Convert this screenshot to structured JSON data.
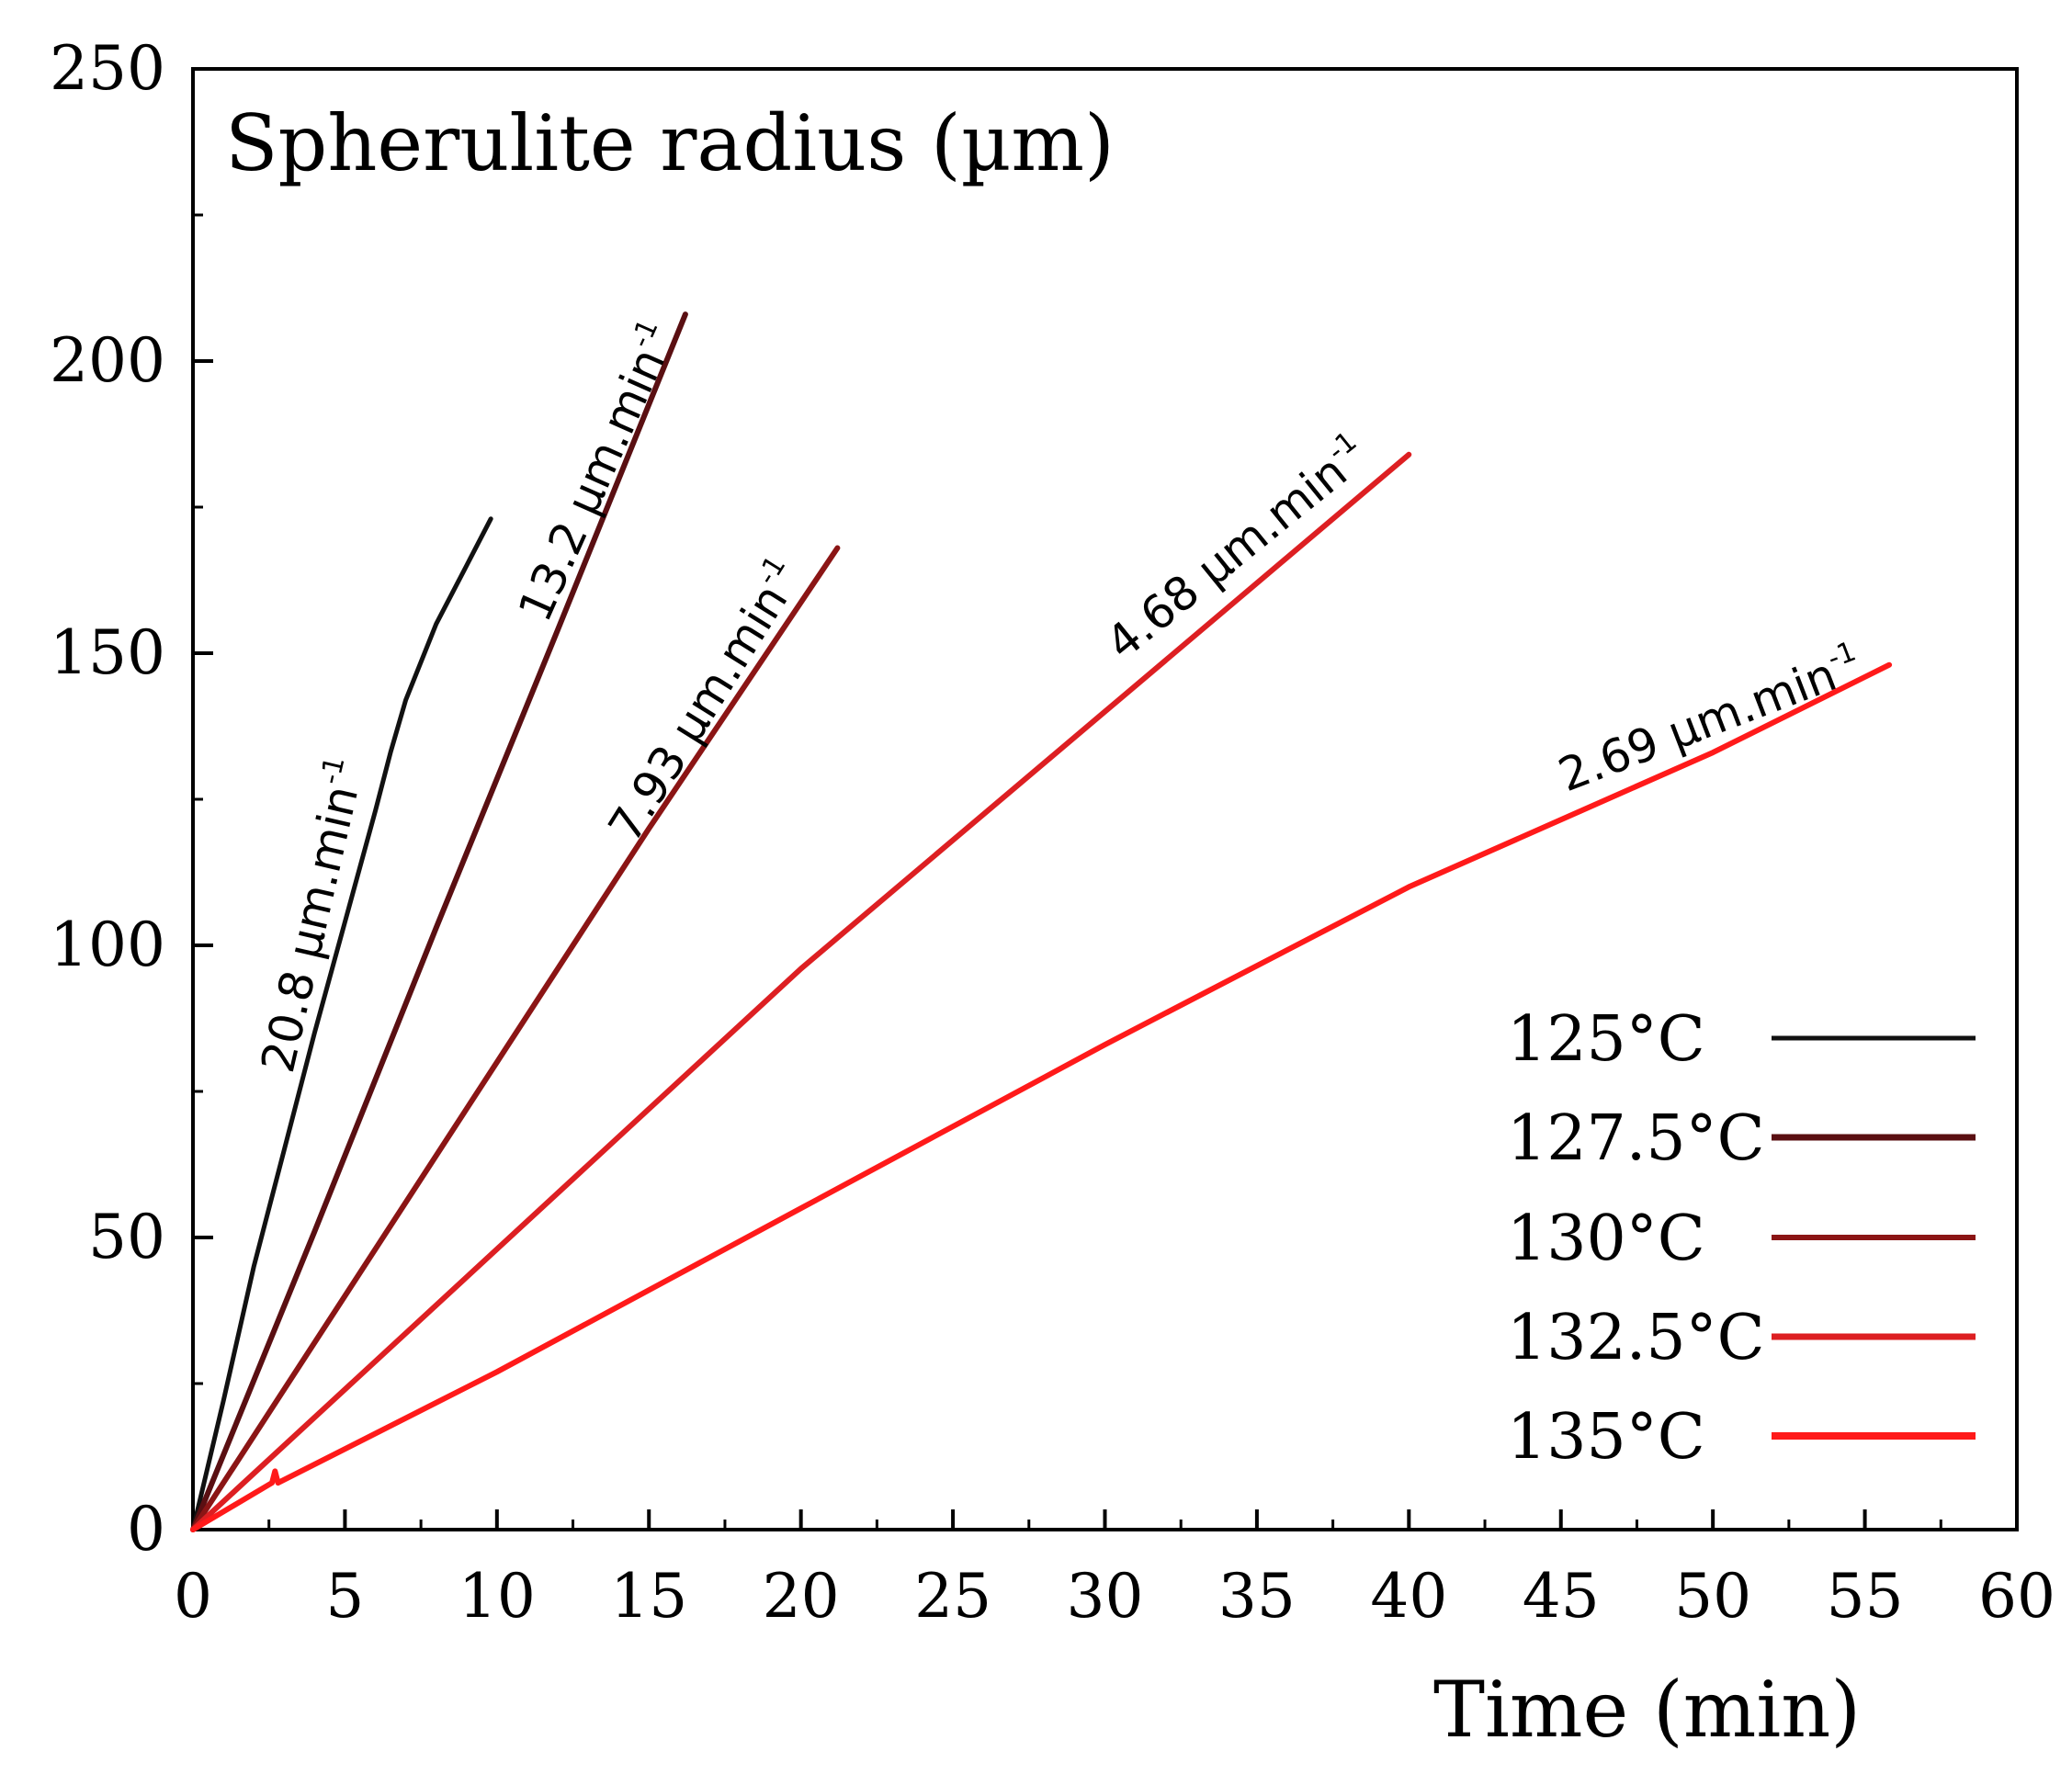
{
  "chart_data": {
    "type": "line",
    "title": "",
    "ylabel": "Spherulite radius (µm)",
    "xlabel": "Time (min)",
    "xlim": [
      0,
      60
    ],
    "ylim": [
      0,
      250
    ],
    "xticks": [
      0,
      5,
      10,
      15,
      20,
      25,
      30,
      35,
      40,
      45,
      50,
      55,
      60
    ],
    "yticks": [
      0,
      50,
      100,
      150,
      200,
      250
    ],
    "xtick_labels": [
      "0",
      "5",
      "10",
      "15",
      "20",
      "25",
      "30",
      "35",
      "40",
      "45",
      "50",
      "55",
      "60"
    ],
    "ytick_labels": [
      "0",
      "50",
      "100",
      "150",
      "200",
      "250"
    ],
    "legend_position": "bottom-right",
    "series": [
      {
        "name": "125°C",
        "color": "#111111",
        "rate_value": "20.8",
        "rate_unit": "µm.min",
        "rate_sup": "-1",
        "x": [
          0,
          1,
          2,
          3,
          4,
          5,
          6,
          6.5,
          7,
          8,
          9,
          9.8
        ],
        "y": [
          0,
          22,
          45,
          65,
          85,
          104,
          123,
          133,
          142,
          155,
          165,
          173
        ]
      },
      {
        "name": "127.5°C",
        "color": "#5a0f12",
        "rate_value": "13.2",
        "rate_unit": "µm.min",
        "rate_sup": "-1",
        "x": [
          0,
          4,
          8,
          12,
          16.2
        ],
        "y": [
          0,
          51,
          103,
          154,
          208
        ]
      },
      {
        "name": "130°C",
        "color": "#8b1515",
        "rate_value": "7.93",
        "rate_unit": "µm.min",
        "rate_sup": "-1",
        "x": [
          0,
          5,
          10,
          15,
          21.2
        ],
        "y": [
          0,
          40,
          80,
          120,
          168
        ]
      },
      {
        "name": "132.5°C",
        "color": "#dd1f22",
        "rate_value": "4.68",
        "rate_unit": "µm.min",
        "rate_sup": "-1",
        "x": [
          0,
          10,
          20,
          30,
          40
        ],
        "y": [
          0,
          48,
          96,
          140,
          184
        ]
      },
      {
        "name": "135°C",
        "color": "#ff1a1a",
        "rate_value": "2.69",
        "rate_unit": "µm.min",
        "rate_sup": "-1",
        "x": [
          0,
          2.6,
          2.7,
          2.8,
          10,
          20,
          30,
          40,
          50,
          55.8
        ],
        "y": [
          0,
          8,
          10,
          8,
          27,
          55,
          83,
          110,
          133,
          148
        ]
      }
    ]
  }
}
